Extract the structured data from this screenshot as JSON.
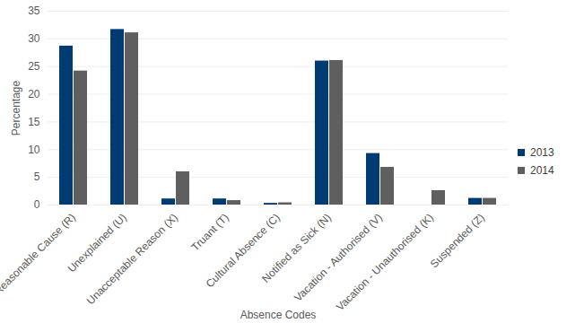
{
  "chart_data": {
    "type": "bar",
    "categories": [
      "Reasonable Cause (R)",
      "Unexplained (U)",
      "Unacceptable Reason (X)",
      "Truant (T)",
      "Cultural Absence (C)",
      "Notified as Sick (N)",
      "Vacation - Authorised (V)",
      "Vacation - Unauthorised (K)",
      "Suspended (Z)"
    ],
    "series": [
      {
        "name": "2013",
        "color": "#003b73",
        "values": [
          28.7,
          31.7,
          1.1,
          1.1,
          0.3,
          26.0,
          9.3,
          0,
          1.2
        ]
      },
      {
        "name": "2014",
        "color": "#5f5f5f",
        "values": [
          24.2,
          31.1,
          6.0,
          0.8,
          0.4,
          26.1,
          6.8,
          2.6,
          1.2
        ]
      }
    ],
    "x_label": "Absence Codes",
    "y_label": "Percentage",
    "ylim": [
      0,
      35
    ],
    "yticks": [
      0,
      5,
      10,
      15,
      20,
      25,
      30,
      35
    ],
    "grid": true,
    "legend": "right"
  }
}
